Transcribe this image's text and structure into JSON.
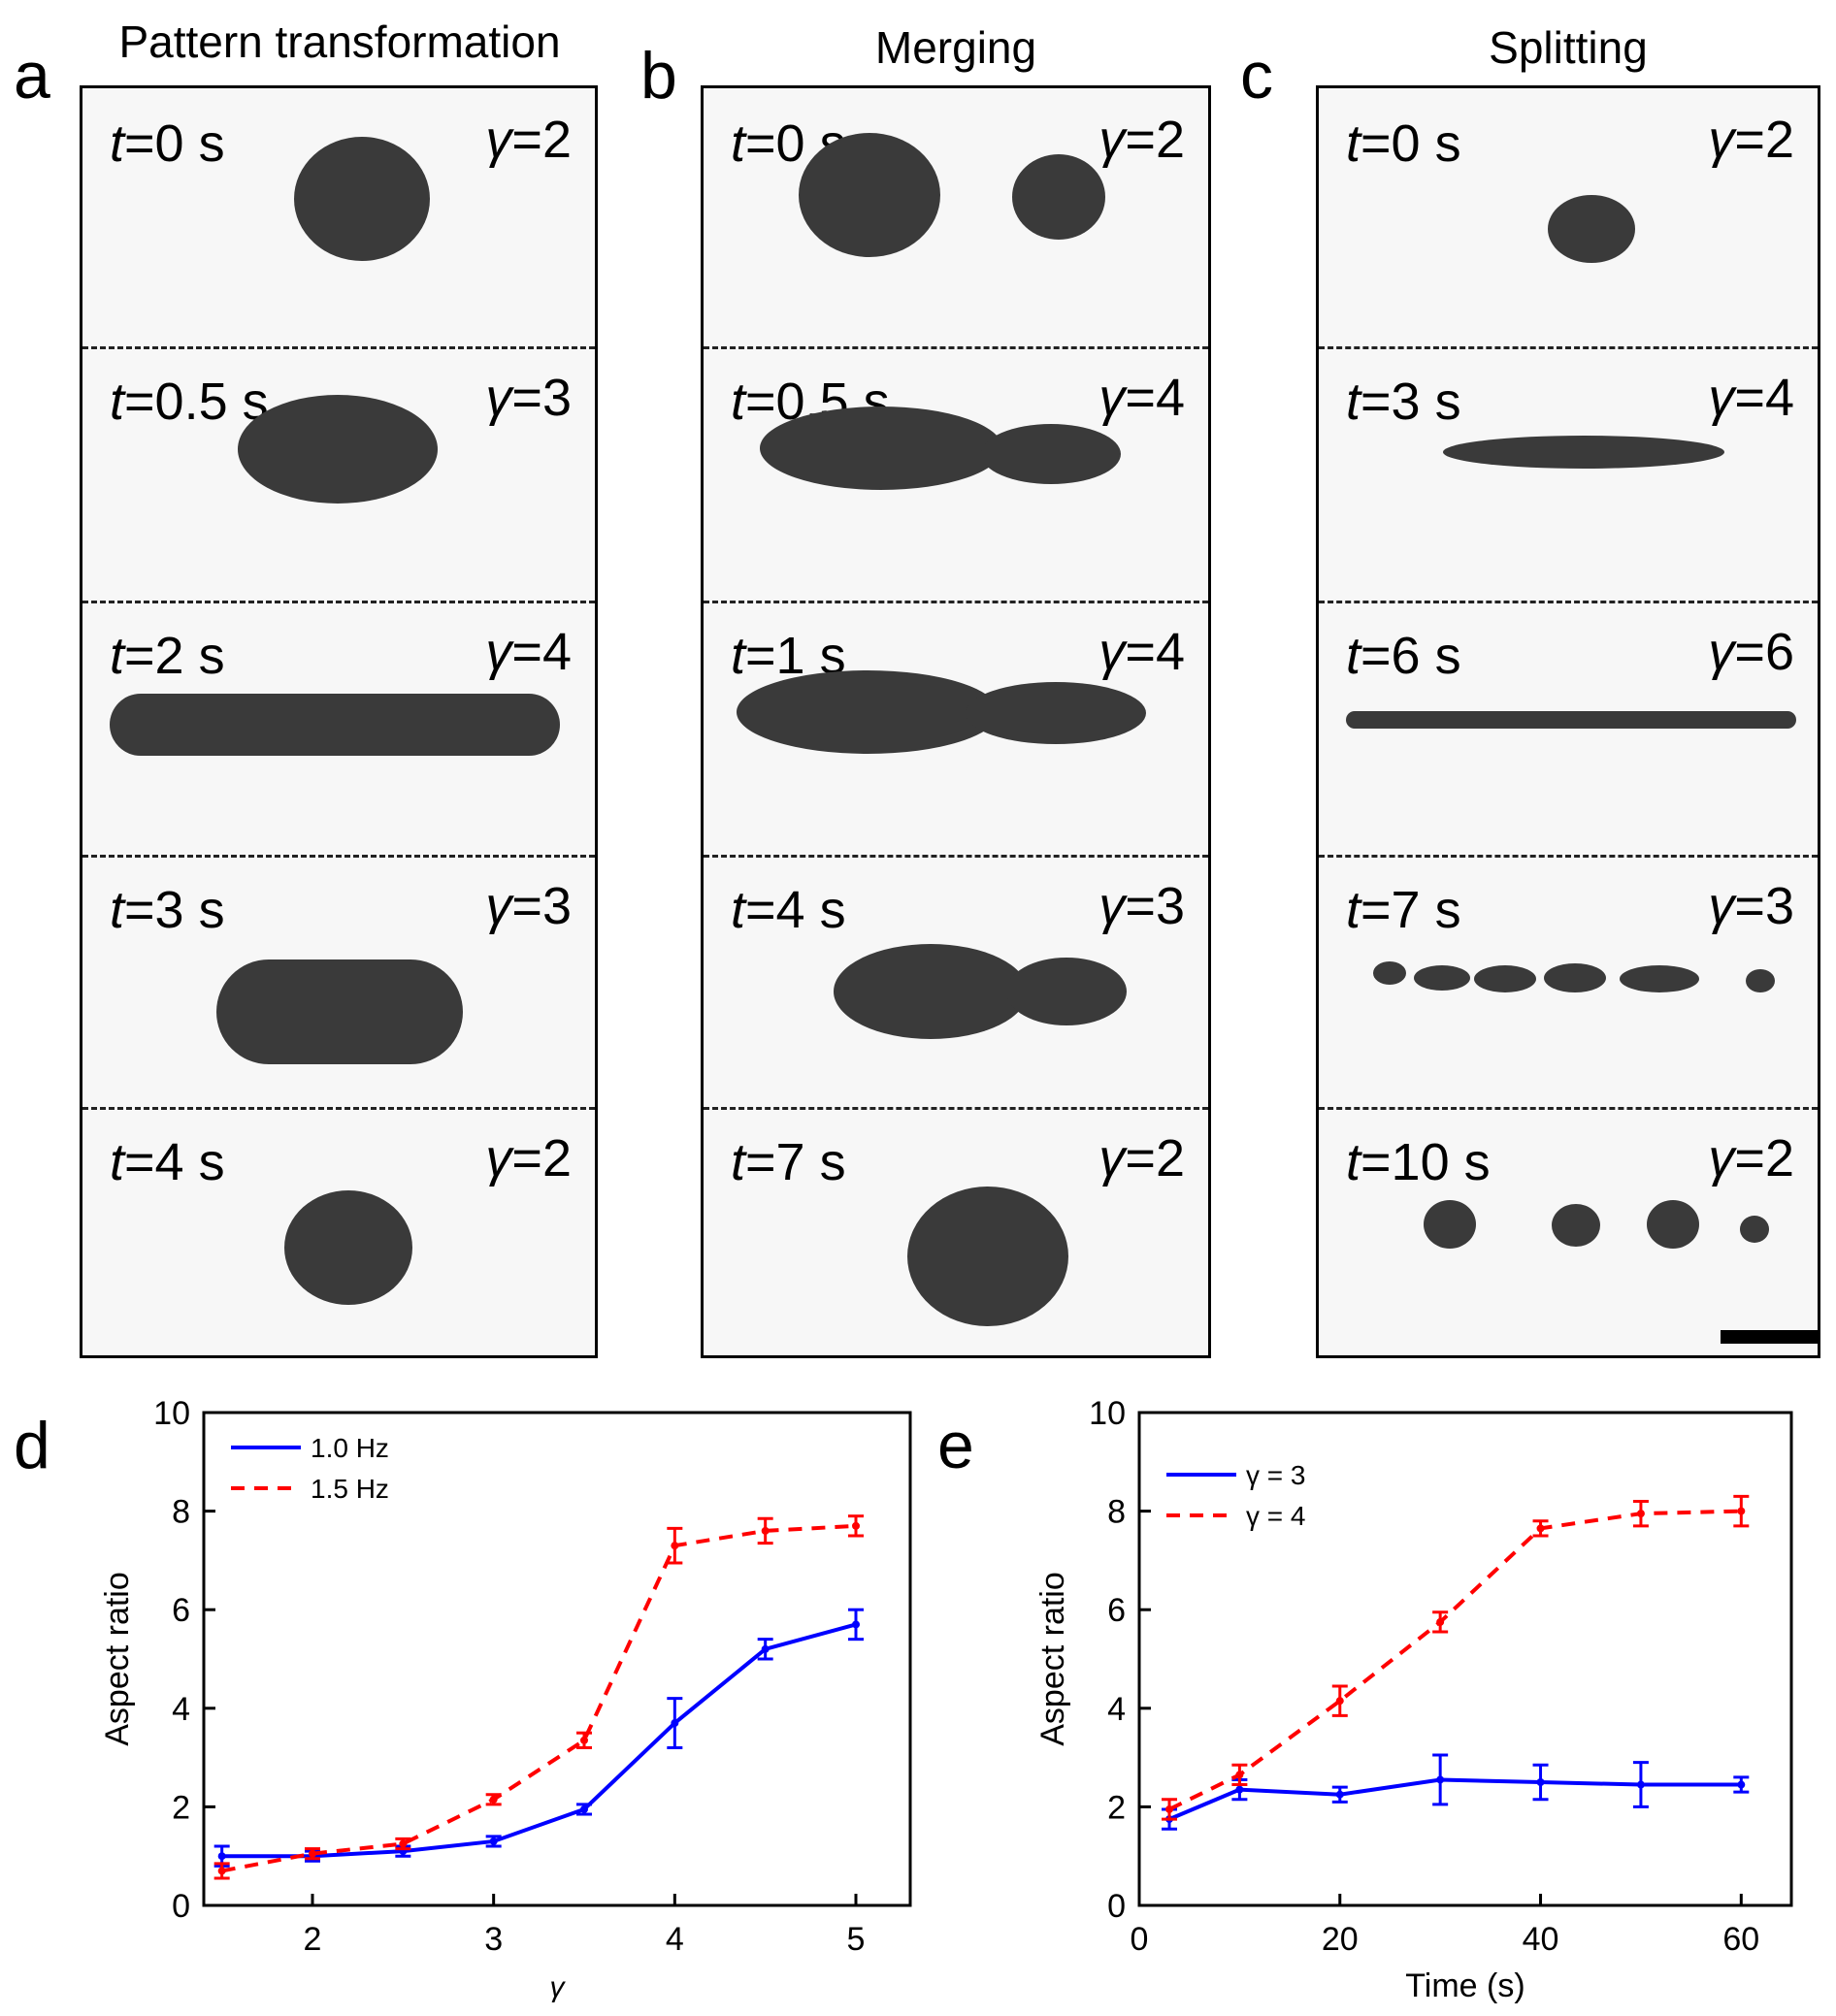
{
  "figure": {
    "panels": [
      {
        "letter": "a",
        "title": "Pattern transformation",
        "frames": [
          {
            "t_label": "t",
            "t_value": "=0 s",
            "g_label": "γ",
            "g_value": "=2"
          },
          {
            "t_label": "t",
            "t_value": "=0.5 s",
            "g_label": "γ",
            "g_value": "=3"
          },
          {
            "t_label": "t",
            "t_value": "=2 s",
            "g_label": "γ",
            "g_value": "=4"
          },
          {
            "t_label": "t",
            "t_value": "=3 s",
            "g_label": "γ",
            "g_value": "=3"
          },
          {
            "t_label": "t",
            "t_value": "=4 s",
            "g_label": "γ",
            "g_value": "=2"
          }
        ]
      },
      {
        "letter": "b",
        "title": "Merging",
        "frames": [
          {
            "t_label": "t",
            "t_value": "=0 s",
            "g_label": "γ",
            "g_value": "=2"
          },
          {
            "t_label": "t",
            "t_value": "=0.5 s",
            "g_label": "γ",
            "g_value": "=4"
          },
          {
            "t_label": "t",
            "t_value": "=1 s",
            "g_label": "γ",
            "g_value": "=4"
          },
          {
            "t_label": "t",
            "t_value": "=4 s",
            "g_label": "γ",
            "g_value": "=3"
          },
          {
            "t_label": "t",
            "t_value": "=7 s",
            "g_label": "γ",
            "g_value": "=2"
          }
        ]
      },
      {
        "letter": "c",
        "title": "Splitting",
        "frames": [
          {
            "t_label": "t",
            "t_value": "=0 s",
            "g_label": "γ",
            "g_value": "=2"
          },
          {
            "t_label": "t",
            "t_value": "=3 s",
            "g_label": "γ",
            "g_value": "=4"
          },
          {
            "t_label": "t",
            "t_value": "=6 s",
            "g_label": "γ",
            "g_value": "=6"
          },
          {
            "t_label": "t",
            "t_value": "=7 s",
            "g_label": "γ",
            "g_value": "=3"
          },
          {
            "t_label": "t",
            "t_value": "=10 s",
            "g_label": "γ",
            "g_value": "=2"
          }
        ]
      }
    ]
  },
  "chart_data": [
    {
      "letter": "d",
      "type": "line",
      "xlabel": "γ",
      "ylabel": "Aspect ratio",
      "xlim": [
        1.4,
        5.3
      ],
      "ylim": [
        0,
        10
      ],
      "xticks": [
        2,
        3,
        4,
        5
      ],
      "yticks": [
        0,
        2,
        4,
        6,
        8,
        10
      ],
      "legend_position": "top-left",
      "series": [
        {
          "name": "1.0 Hz",
          "style": "solid",
          "color": "#0000ff",
          "x": [
            1.5,
            2,
            2.5,
            3,
            3.5,
            4,
            4.5,
            5
          ],
          "y": [
            1.0,
            1.0,
            1.1,
            1.3,
            1.95,
            3.7,
            5.2,
            5.7
          ],
          "err": [
            0.2,
            0.1,
            0.1,
            0.1,
            0.1,
            0.5,
            0.2,
            0.3
          ]
        },
        {
          "name": "1.5 Hz",
          "style": "dashed",
          "color": "#ff0000",
          "x": [
            1.5,
            2,
            2.5,
            3,
            3.5,
            4,
            4.5,
            5
          ],
          "y": [
            0.7,
            1.05,
            1.25,
            2.15,
            3.35,
            7.3,
            7.6,
            7.7
          ],
          "err": [
            0.15,
            0.1,
            0.1,
            0.1,
            0.15,
            0.35,
            0.25,
            0.2
          ]
        }
      ]
    },
    {
      "letter": "e",
      "type": "line",
      "xlabel": "Time (s)",
      "ylabel": "Aspect ratio",
      "xlim": [
        0,
        65
      ],
      "ylim": [
        0,
        10
      ],
      "xticks": [
        0,
        20,
        40,
        60
      ],
      "yticks": [
        0,
        2,
        4,
        6,
        8,
        10
      ],
      "legend_position": "top-left",
      "series": [
        {
          "name": "γ = 3",
          "style": "solid",
          "color": "#0000ff",
          "x": [
            3,
            10,
            20,
            30,
            40,
            50,
            60
          ],
          "y": [
            1.75,
            2.35,
            2.25,
            2.55,
            2.5,
            2.45,
            2.45
          ],
          "err": [
            0.2,
            0.2,
            0.15,
            0.5,
            0.35,
            0.45,
            0.15
          ]
        },
        {
          "name": "γ = 4",
          "style": "dashed",
          "color": "#ff0000",
          "x": [
            3,
            10,
            20,
            30,
            40,
            50,
            60
          ],
          "y": [
            1.95,
            2.65,
            4.15,
            5.75,
            7.65,
            7.95,
            8.0
          ],
          "err": [
            0.2,
            0.2,
            0.3,
            0.2,
            0.15,
            0.25,
            0.3
          ]
        }
      ]
    }
  ]
}
